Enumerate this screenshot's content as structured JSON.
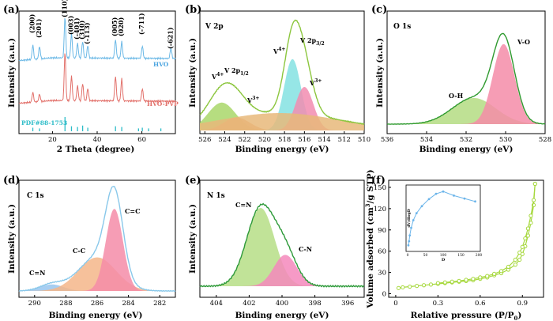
{
  "chart_data": [
    {
      "id": "a",
      "panel_label": "(a)",
      "type": "line",
      "xlabel": "2 Theta (degree)",
      "ylabel": "Intensity (a.u.)",
      "xlim": [
        5,
        75
      ],
      "x_ticks": [
        20,
        40,
        60
      ],
      "grid": false,
      "series": [
        {
          "name": "HVO",
          "color": "#6ab8e6",
          "peaks": [
            [
              11.2,
              0.35
            ],
            [
              14.2,
              0.3
            ],
            [
              25.6,
              1.0
            ],
            [
              28.5,
              0.6
            ],
            [
              31.2,
              0.35
            ],
            [
              33.5,
              0.4
            ],
            [
              35.8,
              0.3
            ],
            [
              48.2,
              0.45
            ],
            [
              51.0,
              0.4
            ],
            [
              60.2,
              0.3
            ],
            [
              73.0,
              0.25
            ]
          ]
        },
        {
          "name": "HVO-PVP",
          "color": "#e2706a",
          "peaks": [
            [
              11.2,
              0.2
            ],
            [
              14.2,
              0.15
            ],
            [
              25.6,
              1.0
            ],
            [
              28.5,
              0.5
            ],
            [
              31.2,
              0.3
            ],
            [
              33.5,
              0.35
            ],
            [
              35.8,
              0.25
            ],
            [
              48.2,
              0.5
            ],
            [
              51.0,
              0.45
            ],
            [
              60.2,
              0.25
            ]
          ]
        },
        {
          "name": "PDF#88-1753",
          "color": "#2cbcc8",
          "type": "stick",
          "sticks": [
            [
              11.2,
              0.25
            ],
            [
              14.2,
              0.2
            ],
            [
              25.6,
              1.0
            ],
            [
              28.5,
              0.35
            ],
            [
              31.2,
              0.3
            ],
            [
              33.5,
              0.4
            ],
            [
              35.8,
              0.25
            ],
            [
              48.2,
              0.35
            ],
            [
              51.0,
              0.3
            ],
            [
              58.5,
              0.2
            ],
            [
              60.2,
              0.25
            ],
            [
              63.0,
              0.2
            ],
            [
              68.5,
              0.2
            ]
          ]
        }
      ],
      "annotations": [
        {
          "text": "(200)",
          "x": 11.2
        },
        {
          "text": "(201)",
          "x": 14.2
        },
        {
          "text": "(110)",
          "x": 25.6
        },
        {
          "text": "(003)",
          "x": 28.5
        },
        {
          "text": "(-401)",
          "x": 31.2
        },
        {
          "text": "(310)",
          "x": 33.5
        },
        {
          "text": "(-113)",
          "x": 35.8
        },
        {
          "text": "(005)",
          "x": 48.2
        },
        {
          "text": "(020)",
          "x": 51.0
        },
        {
          "text": "(-711)",
          "x": 60.2
        },
        {
          "text": "(-621)",
          "x": 73.0
        }
      ]
    },
    {
      "id": "b",
      "panel_label": "(b)",
      "type": "area",
      "title": "V 2p",
      "xlabel": "Binding energy (eV)",
      "ylabel": "Intensity (a.u.)",
      "xlim": [
        526.5,
        510
      ],
      "x_ticks": [
        526,
        524,
        522,
        520,
        518,
        516,
        514,
        512,
        510
      ],
      "reversed_x": true,
      "components": [
        {
          "label": "V4+ (2p1/2)",
          "color": "#a9d76a",
          "center": 524.3,
          "height": 0.32,
          "width": 1.4
        },
        {
          "label": "V3+ (2p1/2)",
          "color": "#f0a070",
          "center": 522.8,
          "height": 0.15,
          "width": 1.3
        },
        {
          "label": "V4+ (2p3/2)",
          "color": "#84e2e2",
          "center": 517.2,
          "height": 0.82,
          "width": 0.85
        },
        {
          "label": "V3+ (2p3/2)",
          "color": "#f28cb0",
          "center": 516.0,
          "height": 0.5,
          "width": 0.9
        },
        {
          "label": "Shirley background",
          "color": "#e8b87a",
          "center": 518.5,
          "height": 0.2,
          "width": 6
        }
      ],
      "annotations": [
        "V",
        "4+",
        "V 2p",
        "1/2",
        "V",
        "3+",
        "V",
        "4+",
        "V 2p",
        "3/2",
        "V",
        "3+"
      ]
    },
    {
      "id": "c",
      "panel_label": "(c)",
      "type": "area",
      "title": "O 1s",
      "xlabel": "Binding energy (eV)",
      "ylabel": "Intensity (a.u.)",
      "xlim": [
        536,
        528
      ],
      "x_ticks": [
        536,
        534,
        532,
        530,
        528
      ],
      "reversed_x": true,
      "components": [
        {
          "label": "O-H",
          "color": "#b4dc82",
          "center": 531.6,
          "height": 0.3,
          "width": 1.1
        },
        {
          "label": "V-O",
          "color": "#f58ca8",
          "center": 530.1,
          "height": 0.92,
          "width": 0.55
        }
      ],
      "annotations": [
        "O-H",
        "V-O"
      ]
    },
    {
      "id": "d",
      "panel_label": "(d)",
      "type": "area",
      "title": "C 1s",
      "xlabel": "Binding energy (eV)",
      "ylabel": "Intensity (a.u.)",
      "xlim": [
        291,
        281
      ],
      "x_ticks": [
        290,
        288,
        286,
        284,
        282
      ],
      "reversed_x": true,
      "components": [
        {
          "label": "C=N",
          "color": "#98c6ee",
          "center": 288.9,
          "height": 0.07,
          "width": 0.75
        },
        {
          "label": "C-C",
          "color": "#f4b68a",
          "center": 286.0,
          "height": 0.36,
          "width": 1.2
        },
        {
          "label": "C=C",
          "color": "#f58ca8",
          "center": 284.9,
          "height": 0.88,
          "width": 0.55
        }
      ],
      "annotations": [
        "C=N",
        "C-C",
        "C=C"
      ]
    },
    {
      "id": "e",
      "panel_label": "(e)",
      "type": "area",
      "title": "N 1s",
      "xlabel": "Binding energy (eV)",
      "ylabel": "Intensity (a.u.)",
      "xlim": [
        405,
        395
      ],
      "x_ticks": [
        404,
        402,
        400,
        398,
        396
      ],
      "reversed_x": true,
      "components": [
        {
          "label": "C=N",
          "color": "#b6de86",
          "center": 401.3,
          "height": 0.9,
          "width": 0.85
        },
        {
          "label": "C-N",
          "color": "#f588bc",
          "center": 399.8,
          "height": 0.36,
          "width": 0.7
        }
      ],
      "annotations": [
        "C=N",
        "C-N"
      ]
    },
    {
      "id": "f",
      "panel_label": "(f)",
      "type": "scatter",
      "xlabel": "Relative pressure (P/P",
      "xlabel_sub": "0",
      "xlabel_end": ")",
      "ylabel": "Volume adsorbed (cm",
      "ylabel_sup": "3",
      "ylabel_end": "/g STP)",
      "xlim": [
        -0.05,
        1.05
      ],
      "ylim": [
        -5,
        160
      ],
      "x_ticks": [
        0.0,
        0.3,
        0.6,
        0.9
      ],
      "y_ticks": [
        0,
        30,
        60,
        90,
        120,
        150
      ],
      "series": [
        {
          "name": "adsorption",
          "color": "#a6d83c",
          "x": [
            0.02,
            0.05,
            0.1,
            0.15,
            0.2,
            0.25,
            0.3,
            0.35,
            0.4,
            0.45,
            0.5,
            0.55,
            0.6,
            0.65,
            0.7,
            0.75,
            0.8,
            0.85,
            0.88,
            0.9,
            0.92,
            0.94,
            0.96,
            0.98,
            0.99
          ],
          "y": [
            8,
            9,
            10,
            11,
            12,
            13,
            14,
            15,
            16,
            17,
            18,
            19,
            21,
            23,
            26,
            29,
            34,
            41,
            48,
            56,
            67,
            82,
            100,
            125,
            155
          ]
        },
        {
          "name": "desorption",
          "color": "#a6d83c",
          "x": [
            0.99,
            0.98,
            0.96,
            0.94,
            0.92,
            0.9,
            0.88,
            0.85,
            0.8,
            0.75,
            0.7,
            0.65,
            0.6,
            0.55,
            0.5,
            0.45,
            0.4,
            0.35,
            0.3
          ],
          "y": [
            155,
            132,
            110,
            92,
            78,
            66,
            58,
            48,
            38,
            32,
            28,
            25,
            23,
            21,
            19.5,
            18,
            17,
            16,
            15
          ]
        }
      ],
      "inset": {
        "type": "line",
        "xlabel": "D",
        "ylabel": "dV/dlogD",
        "xlim": [
          0,
          200
        ],
        "ylim": [
          0,
          1
        ],
        "x_ticks": [
          0,
          50,
          100,
          150,
          200
        ],
        "color": "#6ab4ea",
        "x": [
          2,
          4,
          6,
          10,
          16,
          25,
          40,
          60,
          80,
          100,
          130,
          160,
          190
        ],
        "y": [
          0.05,
          0.12,
          0.22,
          0.35,
          0.48,
          0.6,
          0.72,
          0.84,
          0.93,
          0.97,
          0.9,
          0.85,
          0.8
        ]
      }
    }
  ]
}
